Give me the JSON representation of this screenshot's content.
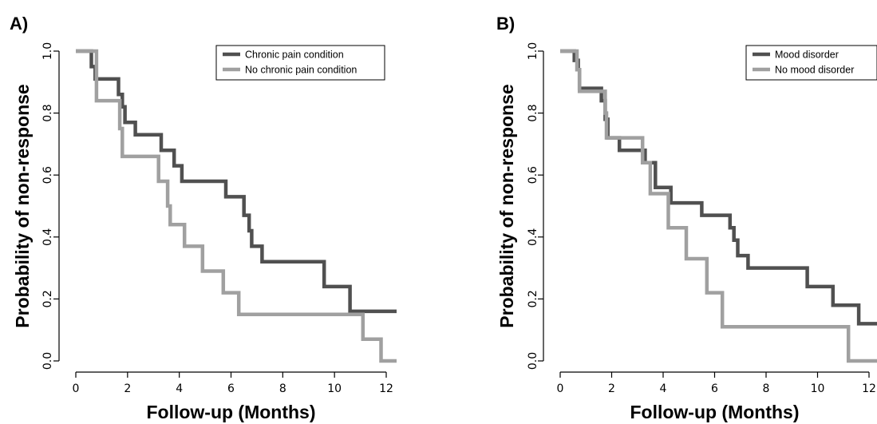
{
  "chart_data": [
    {
      "type": "line",
      "panel": "A)",
      "xlabel": "Follow-up (Months)",
      "ylabel": "Probability of non-response",
      "xlim": [
        0,
        12.5
      ],
      "ylim": [
        0,
        1
      ],
      "xticks": [
        0,
        2,
        4,
        6,
        8,
        10,
        12
      ],
      "yticks": [
        "0.0",
        "0.2",
        "0.4",
        "0.6",
        "0.8",
        "1.0"
      ],
      "legend_position": "top-right",
      "series": [
        {
          "name": "Chronic pain condition",
          "color": "#505050",
          "x": [
            0,
            0.55,
            0.6,
            0.75,
            1.65,
            1.8,
            1.9,
            2.3,
            3.3,
            3.8,
            4.1,
            5.8,
            6.5,
            6.7,
            6.8,
            7.2,
            9.6,
            10.6,
            12.4
          ],
          "y": [
            1.0,
            1.0,
            0.95,
            0.91,
            0.86,
            0.82,
            0.77,
            0.73,
            0.68,
            0.63,
            0.58,
            0.53,
            0.47,
            0.42,
            0.37,
            0.32,
            0.24,
            0.16,
            0.16
          ]
        },
        {
          "name": "No chronic pain condition",
          "color": "#a0a0a0",
          "x": [
            0,
            0.5,
            0.8,
            1.7,
            1.8,
            3.2,
            3.55,
            3.65,
            4.2,
            4.9,
            5.7,
            6.3,
            11.1,
            11.8,
            12.4
          ],
          "y": [
            1.0,
            1.0,
            0.84,
            0.75,
            0.66,
            0.58,
            0.5,
            0.44,
            0.37,
            0.29,
            0.22,
            0.15,
            0.07,
            0.0,
            0.0
          ]
        }
      ]
    },
    {
      "type": "line",
      "panel": "B)",
      "xlabel": "Follow-up (Months)",
      "ylabel": "Probability of non-response",
      "xlim": [
        0,
        12.5
      ],
      "ylim": [
        0,
        1
      ],
      "xticks": [
        0,
        2,
        4,
        6,
        8,
        10,
        12
      ],
      "yticks": [
        "0.0",
        "0.2",
        "0.4",
        "0.6",
        "0.8",
        "1.0"
      ],
      "legend_position": "top-right",
      "series": [
        {
          "name": "Mood disorder",
          "color": "#505050",
          "x": [
            0,
            0.5,
            0.55,
            0.7,
            0.75,
            1.6,
            1.75,
            1.85,
            2.3,
            3.3,
            3.7,
            4.3,
            5.5,
            6.6,
            6.75,
            6.9,
            7.3,
            9.6,
            10.6,
            11.6,
            12.5
          ],
          "y": [
            1.0,
            1.0,
            0.97,
            0.94,
            0.88,
            0.84,
            0.78,
            0.72,
            0.68,
            0.64,
            0.56,
            0.51,
            0.47,
            0.43,
            0.39,
            0.34,
            0.3,
            0.24,
            0.18,
            0.12,
            0.12
          ]
        },
        {
          "name": "No mood disorder",
          "color": "#a0a0a0",
          "x": [
            0,
            0.45,
            0.65,
            0.75,
            1.75,
            1.8,
            3.2,
            3.5,
            4.2,
            4.9,
            5.7,
            6.3,
            11.2,
            12.5
          ],
          "y": [
            1.0,
            1.0,
            0.94,
            0.87,
            0.8,
            0.72,
            0.64,
            0.54,
            0.43,
            0.33,
            0.22,
            0.11,
            0.0,
            0.0
          ]
        }
      ]
    }
  ]
}
